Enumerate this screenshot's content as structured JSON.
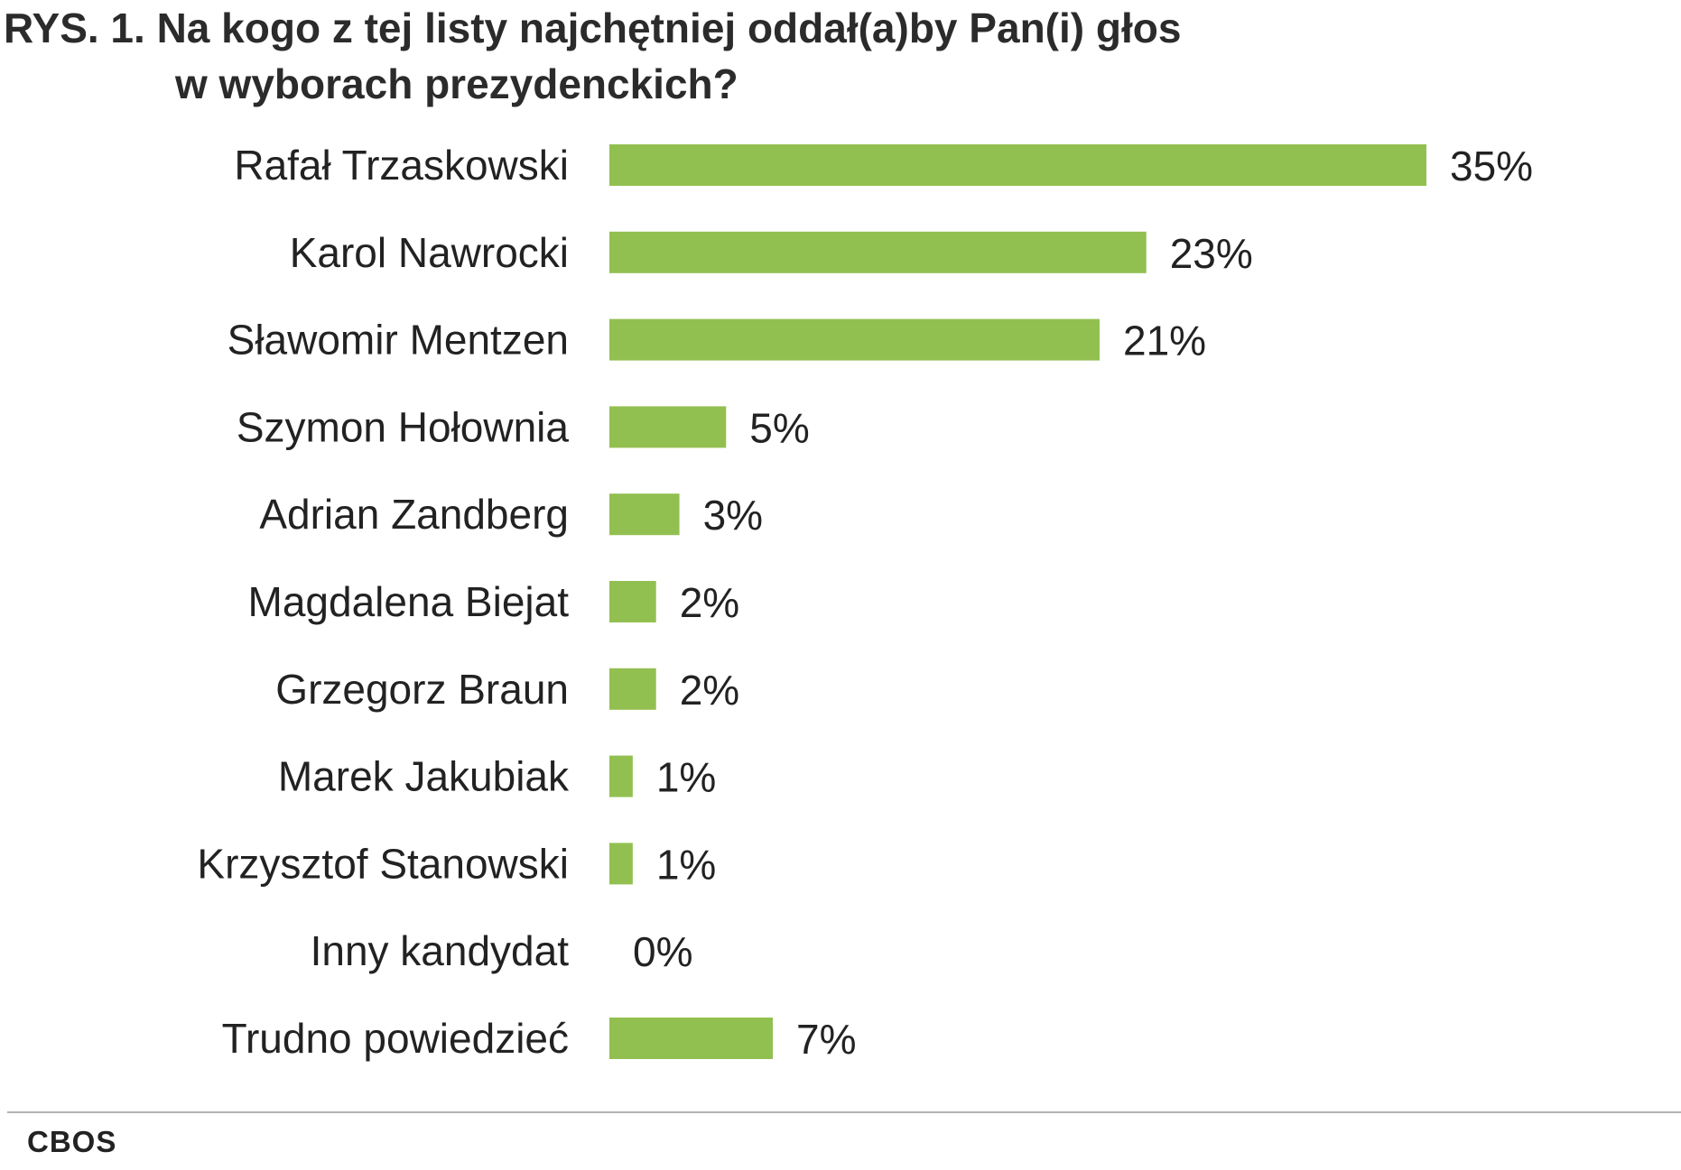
{
  "chart_data": {
    "type": "bar",
    "orientation": "horizontal",
    "title": "RYS. 1. Na kogo z tej listy najchętniej oddał(a)by Pan(i) głos w wyborach prezydenckich?",
    "title_lines": [
      "RYS. 1. Na kogo z tej listy najchętniej oddał(a)by Pan(i) głos",
      "w wyborach prezydenckich?"
    ],
    "categories": [
      "Rafał Trzaskowski",
      "Karol Nawrocki",
      "Sławomir Mentzen",
      "Szymon Hołownia",
      "Adrian Zandberg",
      "Magdalena Biejat",
      "Grzegorz Braun",
      "Marek Jakubiak",
      "Krzysztof Stanowski",
      "Inny kandydat",
      "Trudno powiedzieć"
    ],
    "values": [
      35,
      23,
      21,
      5,
      3,
      2,
      2,
      1,
      1,
      0,
      7
    ],
    "value_labels": [
      "35%",
      "23%",
      "21%",
      "5%",
      "3%",
      "2%",
      "2%",
      "1%",
      "1%",
      "0%",
      "7%"
    ],
    "unit": "%",
    "xlim": [
      0,
      35
    ],
    "grid": false,
    "legend": "none",
    "bar_color": "#92c050"
  },
  "source": "CBOS"
}
